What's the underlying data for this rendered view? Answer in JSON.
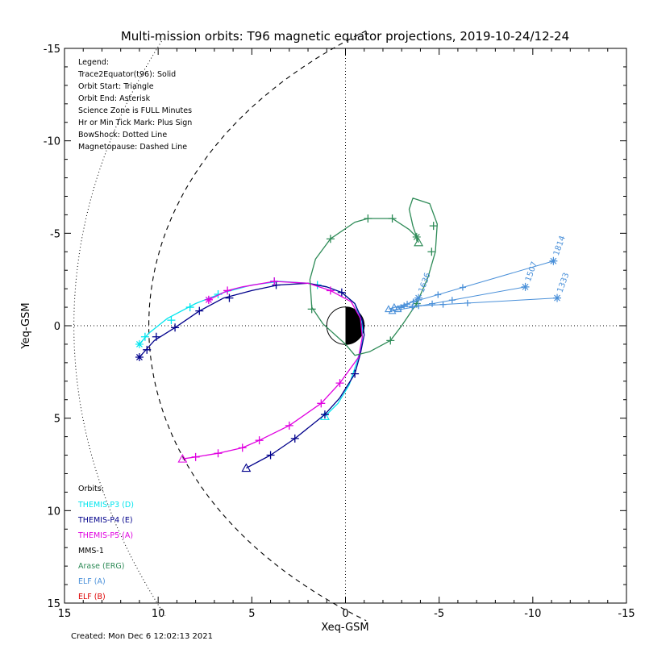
{
  "chart_data": {
    "type": "line",
    "title": "Multi-mission orbits: T96 magnetic equator projections, 2019-10-24/12-24",
    "xlabel": "Xeq-GSM",
    "ylabel": "Yeq-GSM",
    "xlim": [
      15,
      -15
    ],
    "ylim": [
      -15,
      15
    ],
    "xticks": [
      15,
      10,
      5,
      0,
      -5,
      -10,
      -15
    ],
    "yticks": [
      -15,
      -10,
      -5,
      0,
      5,
      10,
      15
    ],
    "xtick_labels": [
      "15",
      "10",
      "5",
      "0",
      "-5",
      "-10",
      "-15"
    ],
    "ytick_labels": [
      "-15",
      "-10",
      "-5",
      "0",
      "5",
      "10",
      "15"
    ],
    "grid": false,
    "reference_lines": "dotted lines at X=0 and Y=0",
    "legend_lines": [
      "Legend:",
      "Trace2Equator(t96): Solid",
      "Orbit Start: Triangle",
      "Orbit End: Asterisk",
      "Science Zone is FULL Minutes",
      "Hr or Min Tick Mark: Plus Sign",
      "BowShock: Dotted Line",
      "Magnetopause: Dashed Line"
    ],
    "orbits_title": "Orbits:",
    "orbit_names": [
      {
        "label": "THEMIS-P3 (D)",
        "color": "#00e5ee"
      },
      {
        "label": "THEMIS-P4 (E)",
        "color": "#00008b"
      },
      {
        "label": "THEMIS-P5 (A)",
        "color": "#e000e0"
      },
      {
        "label": "MMS-1",
        "color": "#000000"
      },
      {
        "label": "Arase (ERG)",
        "color": "#2e8b57"
      },
      {
        "label": "ELF (A)",
        "color": "#4a90d9"
      },
      {
        "label": "ELF (B)",
        "color": "#dd0000"
      }
    ],
    "series": [
      {
        "name": "THEMIS-P3 (D)",
        "color": "#00e5ee",
        "points": [
          [
            1.1,
            4.9
          ],
          [
            0.4,
            4.2
          ],
          [
            -0.2,
            3.2
          ],
          [
            -0.6,
            2.0
          ],
          [
            -0.9,
            0.9
          ],
          [
            -0.9,
            -0.1
          ],
          [
            -0.5,
            -1.2
          ],
          [
            0.2,
            -1.8
          ],
          [
            1.0,
            -2.1
          ],
          [
            2.0,
            -2.3
          ],
          [
            3.5,
            -2.4
          ],
          [
            5.0,
            -2.2
          ],
          [
            6.5,
            -1.8
          ],
          [
            8.0,
            -1.2
          ],
          [
            9.5,
            -0.4
          ],
          [
            10.5,
            0.4
          ],
          [
            11.0,
            1.0
          ]
        ],
        "ticks": [
          [
            1.5,
            -2.2
          ],
          [
            3.8,
            -2.4
          ],
          [
            6.8,
            -1.7
          ],
          [
            8.3,
            -1.0
          ],
          [
            9.3,
            -0.3
          ],
          [
            10.7,
            0.6
          ]
        ]
      },
      {
        "name": "THEMIS-P4 (E)",
        "color": "#00008b",
        "points": [
          [
            5.3,
            7.7
          ],
          [
            4.0,
            7.0
          ],
          [
            2.7,
            6.1
          ],
          [
            1.1,
            4.8
          ],
          [
            0.3,
            3.9
          ],
          [
            -0.5,
            2.6
          ],
          [
            -0.8,
            1.5
          ],
          [
            -1.0,
            0.5
          ],
          [
            -0.9,
            -0.3
          ],
          [
            -0.5,
            -1.2
          ],
          [
            0.2,
            -1.8
          ],
          [
            1.0,
            -2.1
          ],
          [
            2.0,
            -2.3
          ],
          [
            3.6,
            -2.2
          ],
          [
            5.0,
            -1.9
          ],
          [
            6.5,
            -1.5
          ],
          [
            7.8,
            -0.8
          ],
          [
            9.1,
            0.1
          ],
          [
            10.2,
            0.8
          ],
          [
            11.0,
            1.7
          ]
        ],
        "ticks": [
          [
            4.0,
            7.0
          ],
          [
            2.7,
            6.1
          ],
          [
            1.1,
            4.8
          ],
          [
            -0.5,
            2.6
          ],
          [
            0.2,
            -1.8
          ],
          [
            3.7,
            -2.2
          ],
          [
            6.2,
            -1.5
          ],
          [
            7.8,
            -0.8
          ],
          [
            9.1,
            0.1
          ],
          [
            10.1,
            0.6
          ],
          [
            10.6,
            1.3
          ]
        ]
      },
      {
        "name": "THEMIS-P5 (A)",
        "color": "#e000e0",
        "points": [
          [
            8.7,
            7.2
          ],
          [
            8.0,
            7.1
          ],
          [
            6.8,
            6.9
          ],
          [
            5.5,
            6.6
          ],
          [
            4.6,
            6.2
          ],
          [
            3.0,
            5.4
          ],
          [
            1.3,
            4.2
          ],
          [
            0.3,
            3.1
          ],
          [
            -0.7,
            1.7
          ],
          [
            -0.9,
            0.6
          ],
          [
            -0.8,
            -0.4
          ],
          [
            -0.3,
            -1.3
          ],
          [
            0.8,
            -1.9
          ],
          [
            2.0,
            -2.3
          ],
          [
            3.8,
            -2.4
          ],
          [
            5.5,
            -2.1
          ],
          [
            6.3,
            -1.9
          ],
          [
            7.3,
            -1.4
          ]
        ],
        "ticks": [
          [
            8.0,
            7.1
          ],
          [
            6.8,
            6.9
          ],
          [
            5.5,
            6.6
          ],
          [
            4.6,
            6.2
          ],
          [
            3.0,
            5.4
          ],
          [
            1.3,
            4.2
          ],
          [
            0.3,
            3.1
          ],
          [
            0.8,
            -1.9
          ],
          [
            3.8,
            -2.4
          ],
          [
            6.3,
            -1.9
          ],
          [
            7.3,
            -1.4
          ]
        ]
      },
      {
        "name": "Arase (ERG)",
        "color": "#2e8b57",
        "points": [
          [
            -3.9,
            -4.5
          ],
          [
            -3.6,
            -5.4
          ],
          [
            -3.4,
            -6.3
          ],
          [
            -3.6,
            -6.9
          ],
          [
            -4.5,
            -6.6
          ],
          [
            -4.9,
            -5.5
          ],
          [
            -4.8,
            -4.0
          ],
          [
            -4.4,
            -2.6
          ],
          [
            -3.8,
            -1.2
          ],
          [
            -3.0,
            0.0
          ],
          [
            -2.4,
            0.8
          ],
          [
            -1.3,
            1.4
          ],
          [
            -0.5,
            1.6
          ],
          [
            0.0,
            1.0
          ],
          [
            1.2,
            -0.1
          ],
          [
            1.8,
            -1.0
          ],
          [
            1.9,
            -2.5
          ],
          [
            1.6,
            -3.6
          ],
          [
            0.8,
            -4.7
          ],
          [
            -0.5,
            -5.6
          ],
          [
            -1.2,
            -5.8
          ],
          [
            -2.5,
            -5.8
          ],
          [
            -3.4,
            -5.2
          ],
          [
            -3.8,
            -4.8
          ]
        ],
        "ticks": [
          [
            -4.7,
            -5.4
          ],
          [
            -4.6,
            -4.0
          ],
          [
            -3.8,
            -1.2
          ],
          [
            -2.4,
            0.8
          ],
          [
            1.8,
            -0.9
          ],
          [
            0.8,
            -4.7
          ],
          [
            -1.2,
            -5.8
          ],
          [
            -2.5,
            -5.8
          ]
        ]
      },
      {
        "name": "ELF (A)",
        "color": "#4a90d9",
        "points": [],
        "ticks": []
      }
    ],
    "elf_passes": [
      {
        "label": "1814",
        "start": [
          -2.3,
          -0.9
        ],
        "end": [
          -11.1,
          -3.5
        ]
      },
      {
        "label": "1507",
        "start": [
          -2.5,
          -0.8
        ],
        "end": [
          -9.6,
          -2.1
        ]
      },
      {
        "label": "1333",
        "start": [
          -2.6,
          -1.0
        ],
        "end": [
          -11.3,
          -1.5
        ]
      },
      {
        "label": "1636",
        "start": [
          -2.8,
          -0.9
        ],
        "end": [
          -3.9,
          -1.5
        ]
      }
    ],
    "created": "Created: Mon Dec  6 12:02:13 2021"
  }
}
